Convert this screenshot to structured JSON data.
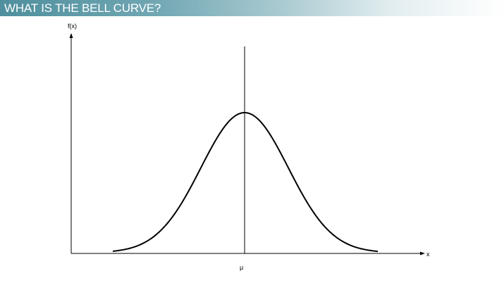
{
  "slide": {
    "title": "WHAT IS THE BELL CURVE?"
  },
  "diagram": {
    "y_axis_label": "f(x)",
    "x_axis_label": "x",
    "mean_label": "μ",
    "line_color": "#000000",
    "title_bar_color": "#4f8f9d",
    "title_text_color": "#ffffff"
  }
}
